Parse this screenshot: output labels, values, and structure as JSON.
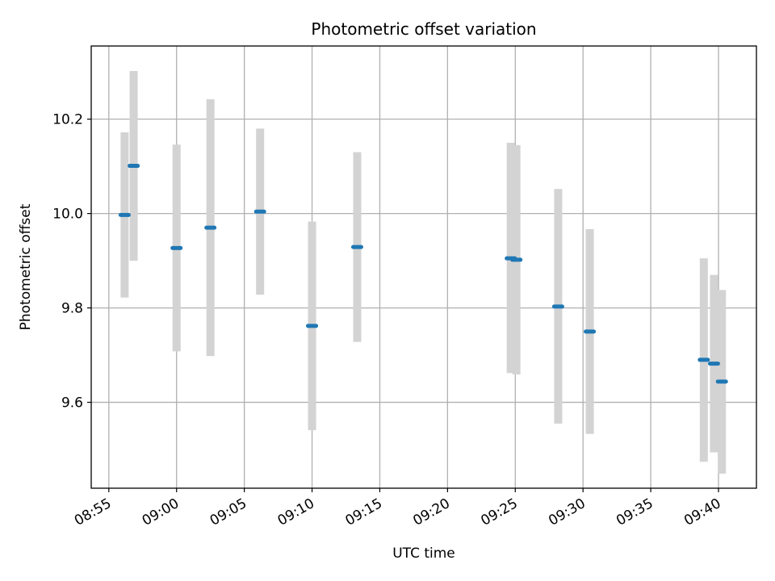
{
  "chart_data": {
    "type": "scatter",
    "title": "Photometric offset variation",
    "xlabel": "UTC time",
    "ylabel": "Photometric offset",
    "grid": true,
    "x_axis": {
      "type": "time",
      "range": [
        "08:53:42",
        "09:42:48"
      ],
      "ticks": [
        "08:55",
        "09:00",
        "09:05",
        "09:10",
        "09:15",
        "09:20",
        "09:25",
        "09:30",
        "09:35",
        "09:40"
      ],
      "tick_rotation_deg": 30
    },
    "y_axis": {
      "range": [
        9.418,
        10.355
      ],
      "ticks": [
        9.6,
        9.8,
        10.0,
        10.2
      ],
      "tick_labels": [
        "9.6",
        "9.8",
        "10.0",
        "10.2"
      ]
    },
    "series": [
      {
        "marker_color": "#1f77b4",
        "errorbar_color": "#d3d3d3",
        "points": [
          {
            "x": "08:56:10",
            "y": 9.997,
            "ylow": 9.822,
            "yhigh": 10.172
          },
          {
            "x": "08:56:50",
            "y": 10.101,
            "ylow": 9.9,
            "yhigh": 10.302
          },
          {
            "x": "09:00:00",
            "y": 9.927,
            "ylow": 9.708,
            "yhigh": 10.146
          },
          {
            "x": "09:02:30",
            "y": 9.97,
            "ylow": 9.698,
            "yhigh": 10.242
          },
          {
            "x": "09:06:10",
            "y": 10.004,
            "ylow": 9.828,
            "yhigh": 10.18
          },
          {
            "x": "09:10:00",
            "y": 9.762,
            "ylow": 9.541,
            "yhigh": 9.983
          },
          {
            "x": "09:13:20",
            "y": 9.929,
            "ylow": 9.728,
            "yhigh": 10.13
          },
          {
            "x": "09:24:40",
            "y": 9.905,
            "ylow": 9.662,
            "yhigh": 10.15
          },
          {
            "x": "09:25:05",
            "y": 9.902,
            "ylow": 9.659,
            "yhigh": 10.145
          },
          {
            "x": "09:28:10",
            "y": 9.803,
            "ylow": 9.555,
            "yhigh": 10.052
          },
          {
            "x": "09:30:30",
            "y": 9.75,
            "ylow": 9.533,
            "yhigh": 9.967
          },
          {
            "x": "09:38:55",
            "y": 9.69,
            "ylow": 9.474,
            "yhigh": 9.905
          },
          {
            "x": "09:39:40",
            "y": 9.682,
            "ylow": 9.494,
            "yhigh": 9.87
          },
          {
            "x": "09:40:15",
            "y": 9.644,
            "ylow": 9.449,
            "yhigh": 9.838
          }
        ]
      }
    ]
  }
}
